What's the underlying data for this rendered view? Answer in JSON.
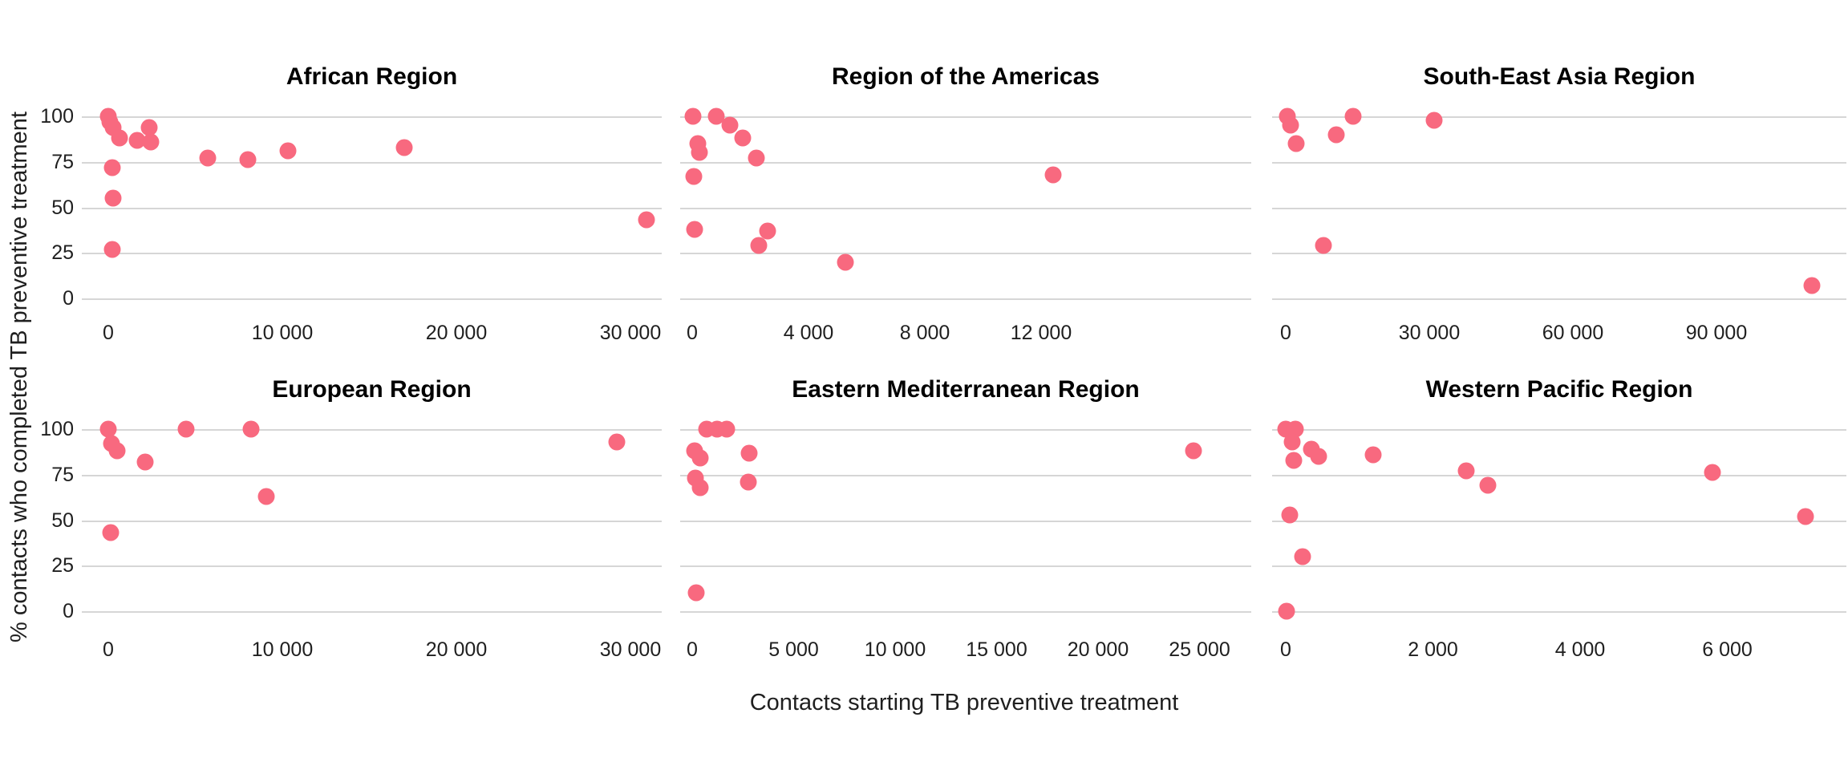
{
  "figure": {
    "y_axis_label": "% contacts who completed TB preventive treatment",
    "x_axis_label": "Contacts starting TB preventive treatment",
    "background_color": "#ffffff",
    "point_color": "#f8697f",
    "gridline_color": "#d6d6d6",
    "text_color": "#1f1f1f",
    "title_color": "#000000",
    "y_ticks": [
      {
        "label": "100",
        "value": 100
      },
      {
        "label": "75",
        "value": 75
      },
      {
        "label": "50",
        "value": 50
      },
      {
        "label": "25",
        "value": 25
      },
      {
        "label": "0",
        "value": 0
      }
    ]
  },
  "chart_data": [
    {
      "type": "scatter",
      "title": "African Region",
      "row": 0,
      "col": 0,
      "xlim": [
        0,
        31500
      ],
      "ylim": [
        0,
        100
      ],
      "x_ticks": [
        {
          "label": "0",
          "value": 0
        },
        {
          "label": "10 000",
          "value": 10000
        },
        {
          "label": "20 000",
          "value": 20000
        },
        {
          "label": "30 000",
          "value": 30000
        }
      ],
      "points": [
        [
          0,
          100
        ],
        [
          80,
          97
        ],
        [
          290,
          94
        ],
        [
          630,
          88
        ],
        [
          1670,
          87
        ],
        [
          2350,
          94
        ],
        [
          2440,
          86
        ],
        [
          240,
          72
        ],
        [
          290,
          55
        ],
        [
          240,
          27
        ],
        [
          5700,
          77
        ],
        [
          8000,
          76
        ],
        [
          10300,
          81
        ],
        [
          17000,
          83
        ],
        [
          30900,
          43
        ]
      ]
    },
    {
      "type": "scatter",
      "title": "Region of the Americas",
      "row": 0,
      "col": 1,
      "xlim": [
        0,
        12600
      ],
      "ylim": [
        0,
        100
      ],
      "x_ticks": [
        {
          "label": "0",
          "value": 0
        },
        {
          "label": "4 000",
          "value": 4000
        },
        {
          "label": "8 000",
          "value": 8000
        },
        {
          "label": "12 000",
          "value": 12000
        }
      ],
      "points": [
        [
          30,
          100
        ],
        [
          830,
          100
        ],
        [
          1310,
          95
        ],
        [
          1730,
          88
        ],
        [
          190,
          85
        ],
        [
          260,
          80
        ],
        [
          50,
          67
        ],
        [
          90,
          38
        ],
        [
          2210,
          77
        ],
        [
          2600,
          37
        ],
        [
          2280,
          29
        ],
        [
          5260,
          20
        ],
        [
          12400,
          68
        ]
      ]
    },
    {
      "type": "scatter",
      "title": "South-East Asia Region",
      "row": 0,
      "col": 2,
      "xlim": [
        0,
        112000
      ],
      "ylim": [
        0,
        100
      ],
      "x_ticks": [
        {
          "label": "0",
          "value": 0
        },
        {
          "label": "30 000",
          "value": 30000
        },
        {
          "label": "60 000",
          "value": 60000
        },
        {
          "label": "90 000",
          "value": 90000
        }
      ],
      "points": [
        [
          400,
          100
        ],
        [
          1000,
          95
        ],
        [
          2200,
          85
        ],
        [
          10500,
          90
        ],
        [
          14000,
          100
        ],
        [
          31000,
          98
        ],
        [
          7800,
          29
        ],
        [
          110000,
          7
        ]
      ]
    },
    {
      "type": "scatter",
      "title": "European Region",
      "row": 1,
      "col": 0,
      "xlim": [
        0,
        30000
      ],
      "ylim": [
        0,
        100
      ],
      "x_ticks": [
        {
          "label": "0",
          "value": 0
        },
        {
          "label": "10 000",
          "value": 10000
        },
        {
          "label": "20 000",
          "value": 20000
        },
        {
          "label": "30 000",
          "value": 30000
        }
      ],
      "points": [
        [
          15,
          100
        ],
        [
          200,
          92
        ],
        [
          520,
          88
        ],
        [
          2100,
          82
        ],
        [
          4450,
          100
        ],
        [
          8200,
          100
        ],
        [
          9100,
          63
        ],
        [
          150,
          43
        ],
        [
          29200,
          93
        ]
      ]
    },
    {
      "type": "scatter",
      "title": "Eastern Mediterranean Region",
      "row": 1,
      "col": 1,
      "xlim": [
        0,
        25500
      ],
      "ylim": [
        0,
        100
      ],
      "x_ticks": [
        {
          "label": "0",
          "value": 0
        },
        {
          "label": "5 000",
          "value": 5000
        },
        {
          "label": "10 000",
          "value": 10000
        },
        {
          "label": "15 000",
          "value": 15000
        },
        {
          "label": "20 000",
          "value": 20000
        },
        {
          "label": "25 000",
          "value": 25000
        }
      ],
      "points": [
        [
          700,
          100
        ],
        [
          1240,
          100
        ],
        [
          1700,
          100
        ],
        [
          100,
          88
        ],
        [
          400,
          84
        ],
        [
          2800,
          87
        ],
        [
          150,
          73
        ],
        [
          400,
          68
        ],
        [
          2760,
          71
        ],
        [
          200,
          10
        ],
        [
          24700,
          88
        ]
      ]
    },
    {
      "type": "scatter",
      "title": "Western Pacific Region",
      "row": 1,
      "col": 2,
      "xlim": [
        0,
        7200
      ],
      "ylim": [
        0,
        100
      ],
      "x_ticks": [
        {
          "label": "0",
          "value": 0
        },
        {
          "label": "2 000",
          "value": 2000
        },
        {
          "label": "4 000",
          "value": 4000
        },
        {
          "label": "6 000",
          "value": 6000
        }
      ],
      "points": [
        [
          0,
          100
        ],
        [
          130,
          100
        ],
        [
          90,
          93
        ],
        [
          110,
          83
        ],
        [
          350,
          89
        ],
        [
          450,
          85
        ],
        [
          1190,
          86
        ],
        [
          2450,
          77
        ],
        [
          2750,
          69
        ],
        [
          50,
          53
        ],
        [
          230,
          30
        ],
        [
          10,
          0
        ],
        [
          5800,
          76
        ],
        [
          7060,
          52
        ]
      ]
    }
  ]
}
